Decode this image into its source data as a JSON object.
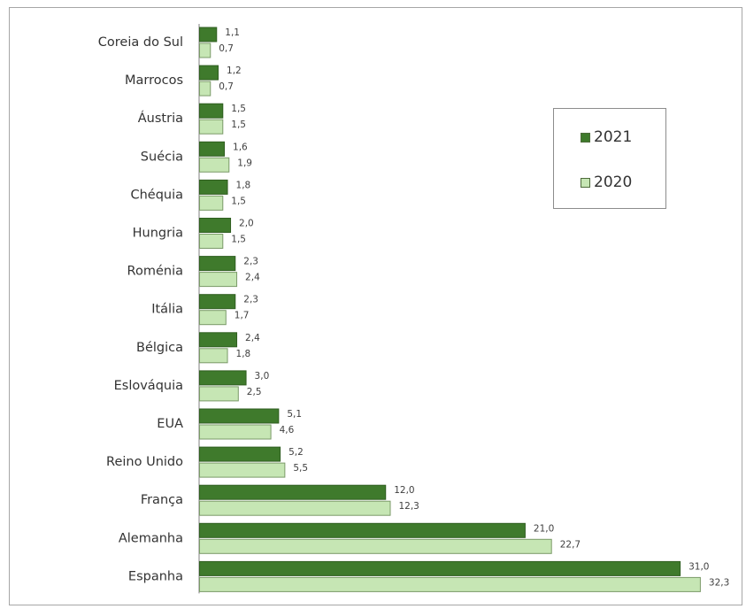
{
  "chart_data": {
    "type": "bar",
    "orientation": "horizontal",
    "categories": [
      "Coreia do Sul",
      "Marrocos",
      "Áustria",
      "Suécia",
      "Chéquia",
      "Hungria",
      "Roménia",
      "Itália",
      "Bélgica",
      "Eslováquia",
      "EUA",
      "Reino Unido",
      "França",
      "Alemanha",
      "Espanha"
    ],
    "series": [
      {
        "name": "2021",
        "color": "#3f7a2c",
        "values": [
          1.1,
          1.2,
          1.5,
          1.6,
          1.8,
          2.0,
          2.3,
          2.3,
          2.4,
          3.0,
          5.1,
          5.2,
          12.0,
          21.0,
          31.0
        ],
        "labels": [
          "1,1",
          "1,2",
          "1,5",
          "1,6",
          "1,8",
          "2,0",
          "2,3",
          "2,3",
          "2,4",
          "3,0",
          "5,1",
          "5,2",
          "12,0",
          "21,0",
          "31,0"
        ]
      },
      {
        "name": "2020",
        "color": "#c6e6b4",
        "values": [
          0.7,
          0.7,
          1.5,
          1.9,
          1.5,
          1.5,
          2.4,
          1.7,
          1.8,
          2.5,
          4.6,
          5.5,
          12.3,
          22.7,
          32.3
        ],
        "labels": [
          "0,7",
          "0,7",
          "1,5",
          "1,9",
          "1,5",
          "1,5",
          "2,4",
          "1,7",
          "1,8",
          "2,5",
          "4,6",
          "5,5",
          "12,3",
          "22,7",
          "32,3"
        ]
      }
    ],
    "xlim": [
      0,
      32.3
    ],
    "grid": false,
    "legend": "right"
  },
  "legend": [
    {
      "label": "2021",
      "color": "#3f7a2c"
    },
    {
      "label": "2020",
      "color": "#c6e6b4"
    }
  ]
}
